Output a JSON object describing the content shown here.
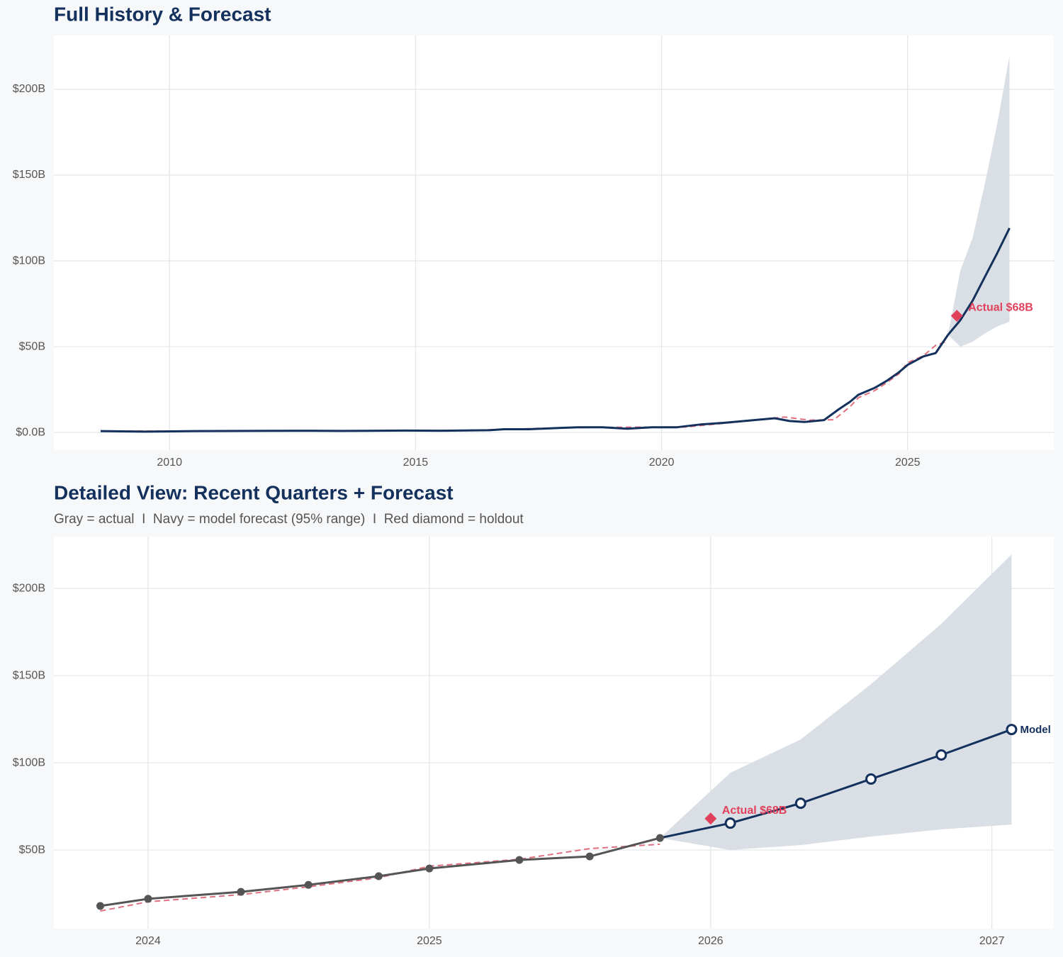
{
  "chart_data": [
    {
      "type": "line",
      "title": "Full History & Forecast",
      "xlim": [
        2007.65,
        2027.97
      ],
      "xticks": [
        2010,
        2015,
        2020,
        2025
      ],
      "ylim": [
        -10.3,
        231.4
      ],
      "yticks": [
        {
          "value": 0,
          "label": "$0.0B"
        },
        {
          "value": 50,
          "label": "$50B"
        },
        {
          "value": 100,
          "label": "$100B"
        },
        {
          "value": 150,
          "label": "$150B"
        },
        {
          "value": 200,
          "label": "$200B"
        }
      ],
      "grid": true,
      "band": {
        "color": "#dadfe6",
        "x": [
          2025.82,
          2026.07,
          2026.32,
          2026.57,
          2026.82,
          2027.07
        ],
        "upper": [
          56.9,
          94.3,
          113.4,
          145.1,
          179.7,
          219.5
        ],
        "lower": [
          56.9,
          50,
          52.8,
          57.7,
          61.8,
          64.6
        ]
      },
      "series": [
        {
          "color": "#e0707f",
          "width": 2,
          "dash": true,
          "x": [
            2008.6,
            2010,
            2012,
            2014,
            2016,
            2018,
            2019.5,
            2020.5,
            2021.5,
            2022.5,
            2023.0,
            2023.5,
            2023.83,
            2024.0,
            2024.33,
            2024.57,
            2024.82,
            2025.0,
            2025.32,
            2025.57,
            2025.82
          ],
          "values": [
            0.8,
            0.8,
            0.9,
            1.0,
            1.2,
            2.8,
            3.1,
            3.2,
            6,
            9,
            7.2,
            7.4,
            15,
            20.3,
            24.4,
            28.9,
            34.1,
            40.7,
            44.7,
            50.8,
            53.3
          ]
        },
        {
          "color": "#13315c",
          "width": 3,
          "x": [
            2008.6,
            2009.5,
            2010.5,
            2011.5,
            2012.8,
            2013.5,
            2014.8,
            2015.5,
            2016.5,
            2016.8,
            2017.3,
            2017.9,
            2018.3,
            2018.8,
            2019.3,
            2019.8,
            2020.3,
            2020.8,
            2021.3,
            2021.8,
            2022.3,
            2022.6,
            2022.9,
            2023.3,
            2023.6,
            2023.83,
            2024.0,
            2024.33,
            2024.57,
            2024.82,
            2025.0,
            2025.32,
            2025.57,
            2025.82
          ],
          "values": [
            0.8,
            0.5,
            0.8,
            0.9,
            1.0,
            0.9,
            1.1,
            1.0,
            1.3,
            1.9,
            1.9,
            2.6,
            3.0,
            3.0,
            2.2,
            3.0,
            3.0,
            4.7,
            5.7,
            7.0,
            8.3,
            6.7,
            6.1,
            7.2,
            13.5,
            17.9,
            22,
            26,
            30,
            35,
            39.4,
            44.3,
            46.3,
            56.9
          ]
        },
        {
          "color": "#13315c",
          "width": 3,
          "connect": true,
          "x": [
            2026.07,
            2026.32,
            2026.57,
            2026.82,
            2027.07
          ],
          "values": [
            65.4,
            76.8,
            90.7,
            104.5,
            119.1
          ]
        }
      ],
      "holdout": {
        "x": 2026.0,
        "value": 68,
        "label": "Actual $68B",
        "color": "#e0405a"
      }
    },
    {
      "type": "line",
      "title": "Detailed View: Recent Quarters + Forecast",
      "subtitle": "Gray = actual  I  Navy = model forecast (95% range)  I  Red diamond = holdout",
      "xlim": [
        2023.665,
        2027.22
      ],
      "xticks": [
        2024,
        2025,
        2026,
        2027
      ],
      "ylim": [
        4.9,
        229.7
      ],
      "yticks": [
        {
          "value": 50,
          "label": "$50B"
        },
        {
          "value": 100,
          "label": "$100B"
        },
        {
          "value": 150,
          "label": "$150B"
        },
        {
          "value": 200,
          "label": "$200B"
        }
      ],
      "grid": true,
      "band": {
        "color": "#dadfe6",
        "x": [
          2025.82,
          2026.07,
          2026.32,
          2026.57,
          2026.82,
          2027.07
        ],
        "upper": [
          56.9,
          94.3,
          113.4,
          145.1,
          179.7,
          219.5
        ],
        "lower": [
          56.9,
          50,
          52.8,
          57.7,
          61.8,
          64.6
        ]
      },
      "series": [
        {
          "color": "#e0707f",
          "width": 2,
          "dash": true,
          "x": [
            2023.83,
            2024.0,
            2024.33,
            2024.57,
            2024.82,
            2025.0,
            2025.32,
            2025.57,
            2025.82
          ],
          "values": [
            15.0,
            20.3,
            24.4,
            28.9,
            34.1,
            40.7,
            44.7,
            50.8,
            53.3
          ]
        },
        {
          "color": "#555555",
          "width": 3,
          "marker": "filled",
          "x": [
            2023.83,
            2024.0,
            2024.33,
            2024.57,
            2024.82,
            2025.0,
            2025.32,
            2025.57,
            2025.82
          ],
          "values": [
            17.9,
            22,
            26,
            30,
            35,
            39.4,
            44.3,
            46.3,
            56.9
          ]
        },
        {
          "color": "#13315c",
          "width": 3,
          "marker": "hollow",
          "connect": true,
          "end_label": "Model",
          "x": [
            2026.07,
            2026.32,
            2026.57,
            2026.82,
            2027.07
          ],
          "values": [
            65.4,
            76.8,
            90.7,
            104.5,
            119.1
          ]
        }
      ],
      "holdout": {
        "x": 2026.0,
        "value": 68,
        "label": "Actual $68B",
        "color": "#e0405a"
      }
    }
  ]
}
